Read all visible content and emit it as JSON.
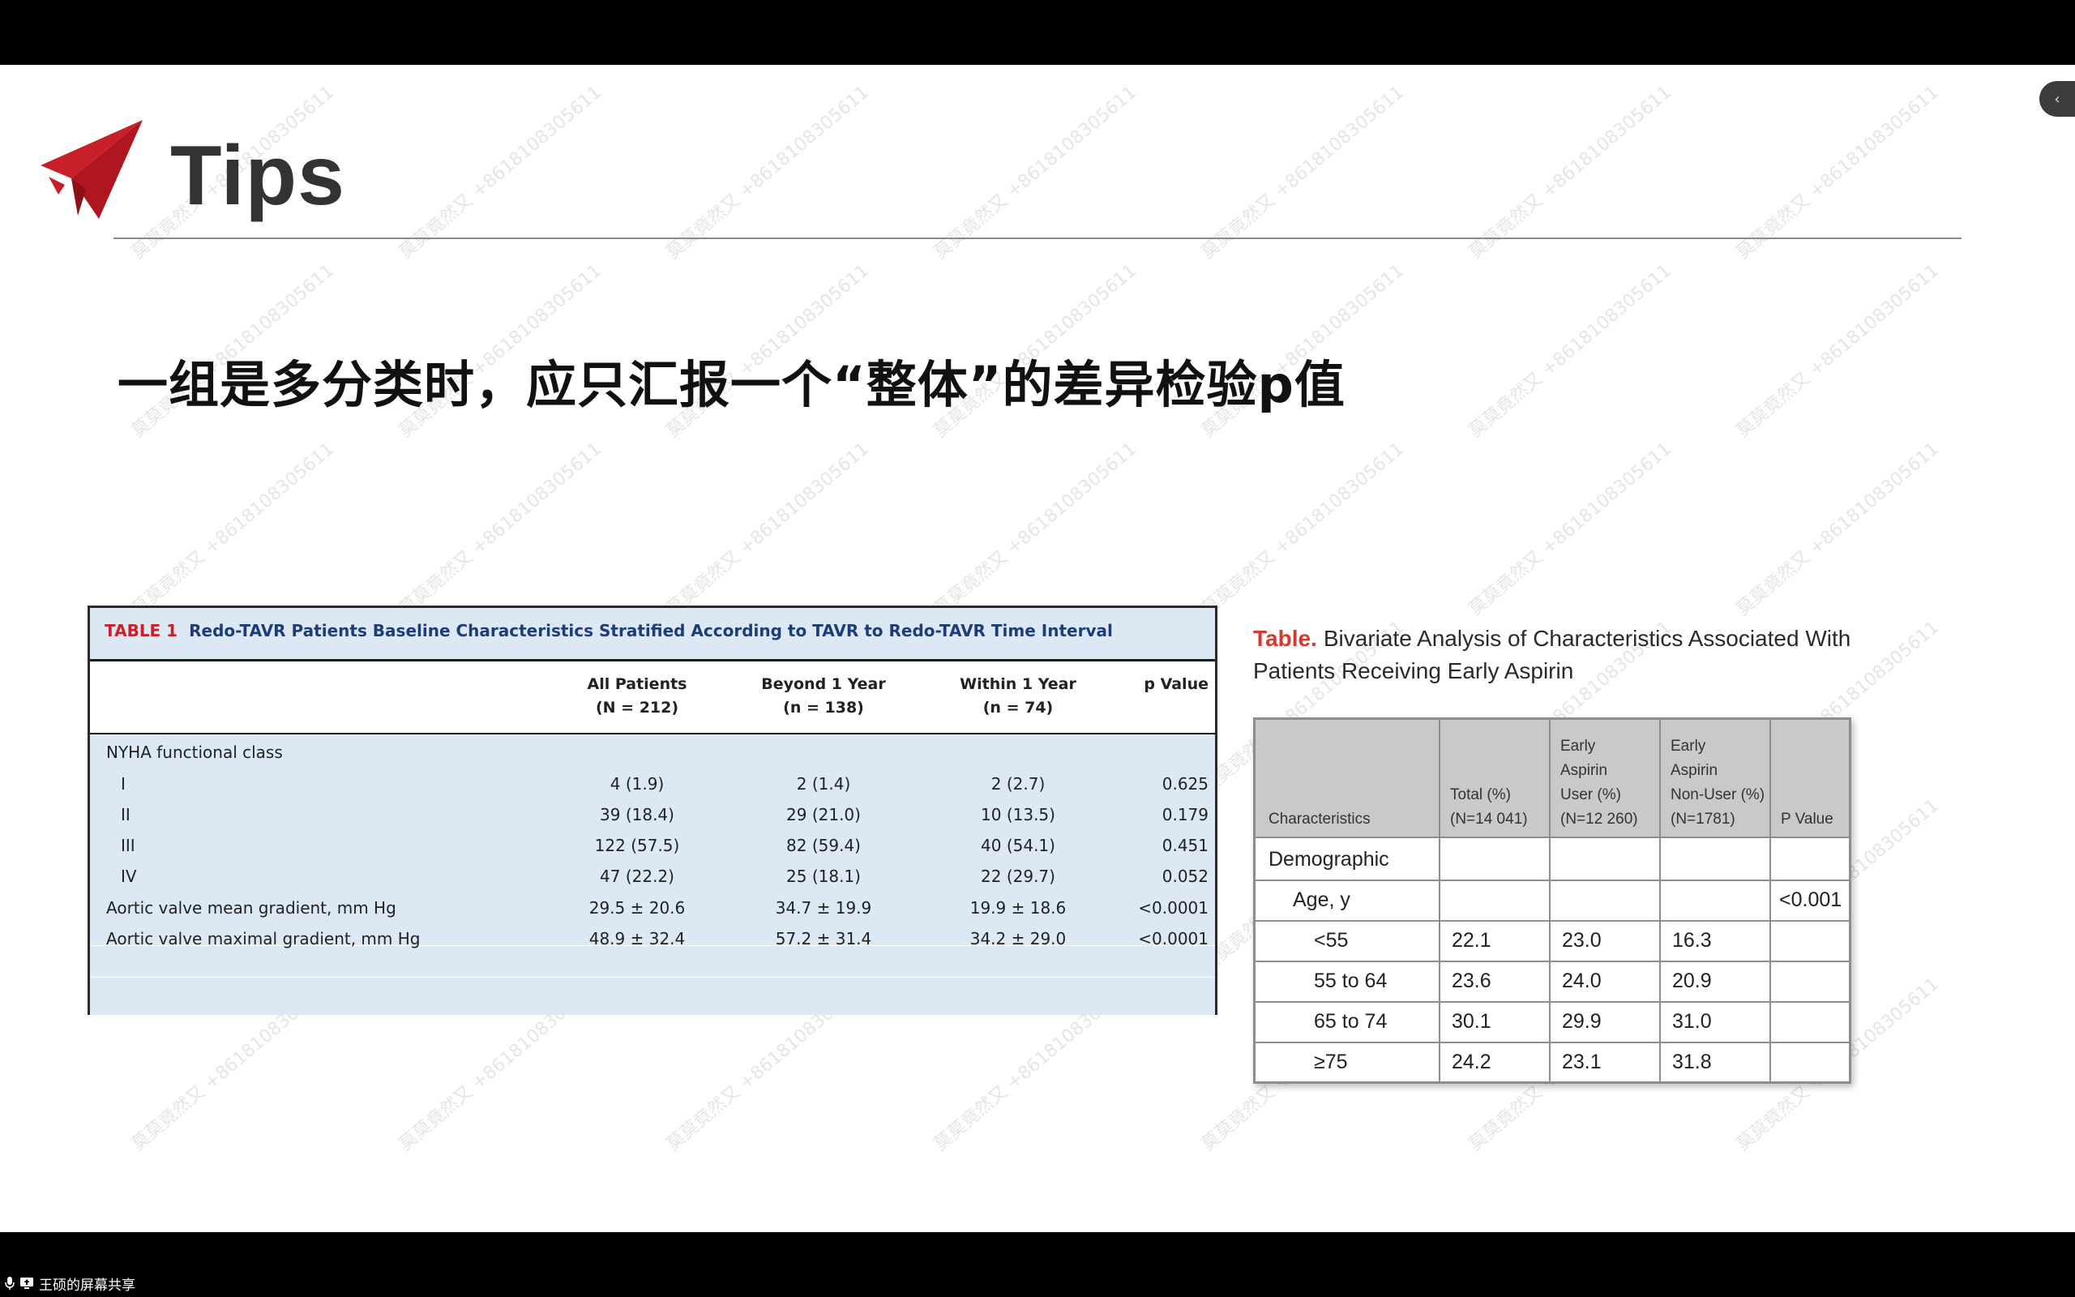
{
  "slide": {
    "title": "Tips",
    "headline": "一组是多分类时，应只汇报一个“整体”的差异检验p值",
    "watermark_text": "莫莫竟然又 +8618108305611"
  },
  "status_bar": {
    "share_label": "王硕的屏幕共享"
  },
  "side_handle": {
    "glyph": "‹"
  },
  "table1": {
    "tag": "TABLE 1",
    "caption": "Redo-TAVR Patients Baseline Characteristics Stratified According to TAVR to Redo-TAVR Time Interval",
    "headers": [
      {
        "line1": "All Patients",
        "line2": "(N = 212)"
      },
      {
        "line1": "Beyond 1 Year",
        "line2": "(n = 138)"
      },
      {
        "line1": "Within 1 Year",
        "line2": "(n = 74)"
      },
      {
        "line1": "",
        "line2": "p Value"
      }
    ],
    "group_label": "NYHA functional class",
    "rows": [
      {
        "label": "I",
        "all": "4 (1.9)",
        "beyond": "2 (1.4)",
        "within": "2 (2.7)",
        "p": "0.625"
      },
      {
        "label": "II",
        "all": "39 (18.4)",
        "beyond": "29 (21.0)",
        "within": "10 (13.5)",
        "p": "0.179"
      },
      {
        "label": "III",
        "all": "122 (57.5)",
        "beyond": "82 (59.4)",
        "within": "40 (54.1)",
        "p": "0.451"
      },
      {
        "label": "IV",
        "all": "47 (22.2)",
        "beyond": "25 (18.1)",
        "within": "22 (29.7)",
        "p": "0.052"
      },
      {
        "label": "Aortic valve mean gradient, mm Hg",
        "all": "29.5 ± 20.6",
        "beyond": "34.7 ± 19.9",
        "within": "19.9 ± 18.6",
        "p": "<0.0001"
      },
      {
        "label": "Aortic valve maximal gradient, mm Hg",
        "all": "48.9 ± 32.4",
        "beyond": "57.2 ± 31.4",
        "within": "34.2 ± 29.0",
        "p": "<0.0001"
      }
    ]
  },
  "table2": {
    "tag": "Table.",
    "caption": "Bivariate Analysis of Characteristics Associated With Patients Receiving Early Aspirin",
    "headers": [
      {
        "lines": [
          "Characteristics"
        ]
      },
      {
        "lines": [
          "Total (%)",
          "(N=14 041)"
        ]
      },
      {
        "lines": [
          "Early",
          "Aspirin",
          "User (%)",
          "(N=12 260)"
        ]
      },
      {
        "lines": [
          "Early",
          "Aspirin",
          "Non-User (%)",
          "(N=1781)"
        ]
      },
      {
        "lines": [
          "P Value"
        ]
      }
    ],
    "rows": [
      {
        "label": "Demographic",
        "total": "",
        "user": "",
        "nonuser": "",
        "p": ""
      },
      {
        "label": "Age, y",
        "total": "",
        "user": "",
        "nonuser": "",
        "p": "<0.001"
      },
      {
        "label": "<55",
        "total": "22.1",
        "user": "23.0",
        "nonuser": "16.3",
        "p": ""
      },
      {
        "label": "55 to 64",
        "total": "23.6",
        "user": "24.0",
        "nonuser": "20.9",
        "p": ""
      },
      {
        "label": "65 to 74",
        "total": "30.1",
        "user": "29.9",
        "nonuser": "31.0",
        "p": ""
      },
      {
        "label": "≥75",
        "total": "24.2",
        "user": "23.1",
        "nonuser": "31.8",
        "p": ""
      }
    ]
  },
  "colors": {
    "logo_red": "#c8202a",
    "table1_band": "#dde8f5",
    "table1_caption": "#1d3d78",
    "table2_tag": "#d43a2e",
    "table2_header": "#c9c9c9"
  }
}
